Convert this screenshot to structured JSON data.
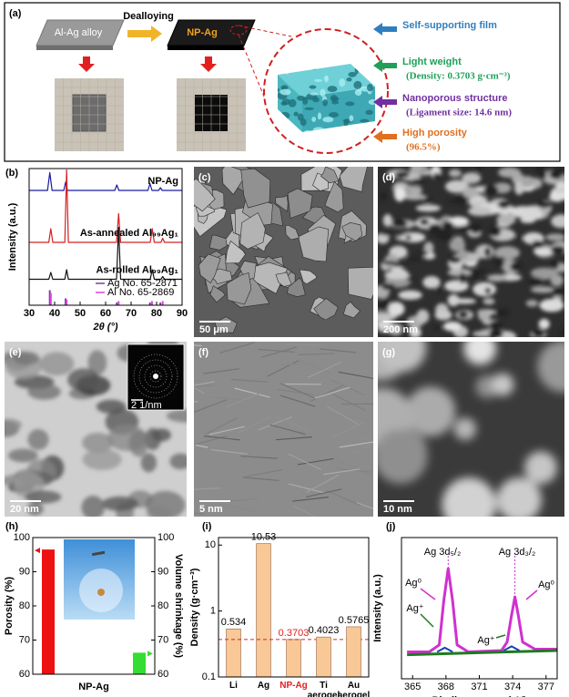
{
  "panel_a": {
    "label": "(a)",
    "alloy_label": "Al-Ag alloy",
    "process": "Dealloying",
    "product_label": "NP-Ag",
    "features": [
      {
        "title": "Self-supporting film",
        "color": "#2f7fc0"
      },
      {
        "title": "Light weight",
        "detail": "(Density: 0.3703 g·cm⁻³)",
        "color": "#1fa05a"
      },
      {
        "title": "Nanoporous structure",
        "detail": "(Ligament size: 14.6 nm)",
        "color": "#7030a0"
      },
      {
        "title": "High porosity",
        "detail": "(96.5%)",
        "color": "#e07020"
      }
    ]
  },
  "micrographs": [
    {
      "label": "(c)",
      "scale_bar": "50 μm"
    },
    {
      "label": "(d)",
      "scale_bar": "200 nm"
    },
    {
      "label": "(e)",
      "scale_bar": "20 nm",
      "inset_scale_bar": "2 1/nm"
    },
    {
      "label": "(f)",
      "scale_bar": "5 nm"
    },
    {
      "label": "(g)",
      "scale_bar": "10 nm"
    }
  ],
  "chart_data": [
    {
      "type": "line",
      "label": "(b)",
      "xlabel": "2θ (°)",
      "ylabel": "Intensity (a.u.)",
      "xlim": [
        30,
        90
      ],
      "xticks": [
        30,
        40,
        50,
        60,
        70,
        80,
        90
      ],
      "ylim": [
        0,
        100
      ],
      "legend": "lower right",
      "series": [
        {
          "name": "NP-Ag",
          "color": "#1a1aa0",
          "x": [
            30,
            37.2,
            38.1,
            39,
            43.6,
            44.3,
            45,
            63.6,
            64.4,
            65.2,
            76.6,
            77.4,
            78.2,
            80.8,
            81.5,
            82.2,
            90
          ],
          "values": [
            84,
            84,
            97,
            84,
            84,
            90,
            84,
            84,
            88,
            84,
            84,
            89,
            84,
            84,
            86,
            84,
            84
          ]
        },
        {
          "name": "As-annealed Al₉₉Ag₁",
          "color": "#d42020",
          "x": [
            30,
            37.7,
            38.5,
            39.3,
            44,
            44.7,
            45.4,
            64.3,
            65.1,
            65.9,
            77.5,
            78.3,
            79.1,
            81.7,
            82.4,
            83.1,
            90
          ],
          "values": [
            46,
            46,
            56,
            46,
            46,
            99,
            46,
            46,
            67,
            46,
            46,
            56,
            46,
            46,
            49,
            46,
            46
          ]
        },
        {
          "name": "As-rolled Al₉₉Ag₁",
          "color": "#111111",
          "x": [
            30,
            37.7,
            38.5,
            39.3,
            44,
            44.7,
            45.4,
            64.3,
            65.1,
            65.9,
            77.5,
            78.3,
            79.1,
            81.7,
            82.4,
            83.1,
            90
          ],
          "values": [
            19,
            19,
            24,
            19,
            19,
            26,
            19,
            19,
            57,
            19,
            19,
            26,
            19,
            19,
            21,
            19,
            19
          ]
        },
        {
          "name": "Ag No. 65-2871",
          "color": "#7b3fa0",
          "style": "stick",
          "x": [
            38.1,
            44.3,
            64.4,
            77.4,
            81.5
          ],
          "values": [
            11,
            5,
            2,
            2,
            2
          ]
        },
        {
          "name": "Al No. 65-2869",
          "color": "#e040e0",
          "style": "stick",
          "x": [
            38.5,
            44.7,
            65.1,
            78.2,
            82.4
          ],
          "values": [
            9,
            4,
            3,
            3,
            3
          ]
        }
      ]
    },
    {
      "type": "bar",
      "label": "(h)",
      "ylabel": "Porosity (%)",
      "y2label": "Volume shrinkage (%)",
      "categories": [
        "NP-Ag"
      ],
      "ylim": [
        60,
        100
      ],
      "yticks": [
        60,
        70,
        80,
        90,
        100
      ],
      "y2lim": [
        60,
        100
      ],
      "y2ticks": [
        60,
        70,
        80,
        90,
        100
      ],
      "series": [
        {
          "color": "#ee1111",
          "values": [
            96.5
          ]
        },
        {
          "color": "#33dd33",
          "values": [
            66.3
          ],
          "axis": "y2"
        }
      ]
    },
    {
      "type": "bar",
      "label": "(i)",
      "ylabel": "Density (g·cm⁻³)",
      "log": true,
      "ylim": [
        0.1,
        13
      ],
      "yticks": [
        0.1,
        1,
        10
      ],
      "categories": [
        "Li",
        "Ag",
        "NP-Ag",
        "Ti aerogel",
        "Au aerogel"
      ],
      "category_colors": [
        "#000000",
        "#000000",
        "#e02020",
        "#000000",
        "#000000"
      ],
      "values": [
        0.534,
        10.53,
        0.3703,
        0.4023,
        0.5765
      ],
      "color": "#f8c896",
      "edgecolor": "#b08060"
    },
    {
      "type": "line",
      "label": "(j)",
      "xlabel": "Binding energy (eV)",
      "ylabel": "Intensity (a.u.)",
      "xlim": [
        364,
        378
      ],
      "xticks": [
        365,
        368,
        371,
        374,
        377
      ],
      "ylim": [
        0,
        100
      ],
      "annotations": [
        "Ag 3d₅/₂",
        "Ag 3d₃/₂",
        "Ag⁰",
        "Ag⁺",
        "Ag⁺",
        "Ag⁰"
      ],
      "series": [
        {
          "color": "#d030d0",
          "width": 3,
          "x": [
            364.5,
            366.5,
            367.4,
            367.8,
            368.2,
            368.6,
            369,
            370,
            373,
            373.5,
            373.9,
            374.2,
            374.5,
            374.9,
            376,
            378
          ],
          "values": [
            19,
            19,
            24,
            55,
            78,
            55,
            24,
            19,
            20,
            26,
            45,
            58,
            45,
            26,
            21,
            21
          ]
        },
        {
          "color": "#1f7a1f",
          "width": 3,
          "x": [
            364.5,
            378
          ],
          "values": [
            17,
            20
          ]
        },
        {
          "color": "#1a3fb0",
          "width": 2,
          "x": [
            367.2,
            367.9,
            368.6,
            370,
            373.2,
            373.9,
            374.6
          ],
          "values": [
            19,
            22,
            19,
            null,
            20,
            23,
            20
          ]
        }
      ]
    }
  ]
}
